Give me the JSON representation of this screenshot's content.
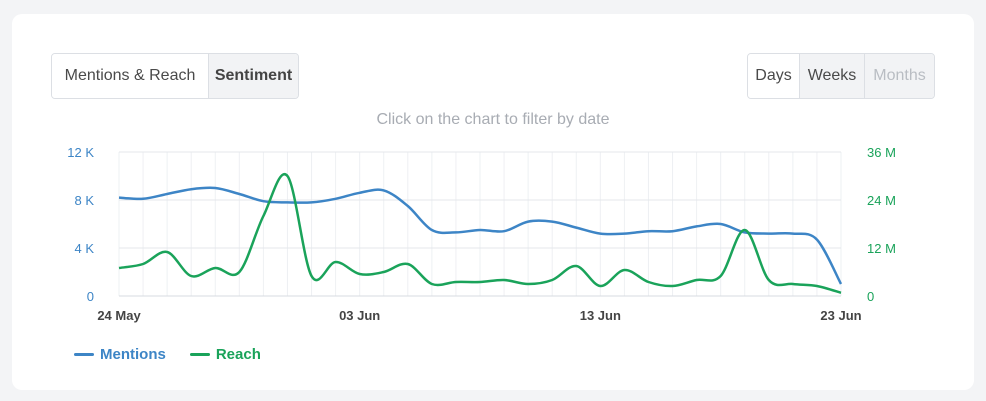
{
  "toolbar": {
    "view_tabs": [
      {
        "label": "Mentions & Reach",
        "active": true
      },
      {
        "label": "Sentiment",
        "active": false
      }
    ],
    "period_tabs": [
      {
        "label": "Days",
        "active": true
      },
      {
        "label": "Weeks",
        "active": false
      },
      {
        "label": "Months",
        "active": false,
        "disabled": true
      }
    ]
  },
  "hint": "Click on the chart to filter by date",
  "colors": {
    "mentions": "#3d85c6",
    "reach": "#1aa35a",
    "left_axis": "#3d85c6",
    "right_axis": "#1aa35a"
  },
  "chart_data": {
    "type": "line",
    "x_labels": [
      "24 May",
      "03 Jun",
      "13 Jun",
      "23 Jun"
    ],
    "x": [
      "24 May",
      "25 May",
      "26 May",
      "27 May",
      "28 May",
      "29 May",
      "30 May",
      "31 May",
      "01 Jun",
      "02 Jun",
      "03 Jun",
      "04 Jun",
      "05 Jun",
      "06 Jun",
      "07 Jun",
      "08 Jun",
      "09 Jun",
      "10 Jun",
      "11 Jun",
      "12 Jun",
      "13 Jun",
      "14 Jun",
      "15 Jun",
      "16 Jun",
      "17 Jun",
      "18 Jun",
      "19 Jun",
      "20 Jun",
      "21 Jun",
      "22 Jun",
      "23 Jun"
    ],
    "y_left": {
      "label": "",
      "ticks": [
        "0",
        "4 K",
        "8 K",
        "12 K"
      ],
      "lim": [
        0,
        12000
      ]
    },
    "y_right": {
      "label": "",
      "ticks": [
        "0",
        "12 M",
        "24 M",
        "36 M"
      ],
      "lim": [
        0,
        36000000
      ]
    },
    "series": [
      {
        "name": "Mentions",
        "axis": "left",
        "values": [
          8200,
          8100,
          8500,
          8900,
          9000,
          8500,
          7900,
          7800,
          7800,
          8100,
          8600,
          8800,
          7500,
          5500,
          5300,
          5500,
          5400,
          6200,
          6200,
          5700,
          5200,
          5200,
          5400,
          5400,
          5800,
          6000,
          5300,
          5200,
          5200,
          4700,
          1000
        ]
      },
      {
        "name": "Reach",
        "axis": "right",
        "values": [
          7000,
          8000,
          11000,
          5000,
          7000,
          6000,
          20000,
          30000,
          5000,
          8500,
          5500,
          6000,
          8000,
          3000,
          3500,
          3500,
          4000,
          3000,
          4000,
          7500,
          2500,
          6500,
          3500,
          2500,
          4000,
          5000,
          16500,
          4000,
          3000,
          2500,
          800
        ],
        "unit_note": "values in thousands"
      }
    ],
    "legend": "bottom-left",
    "grid": true
  },
  "legend": {
    "mentions": "Mentions",
    "reach": "Reach"
  }
}
